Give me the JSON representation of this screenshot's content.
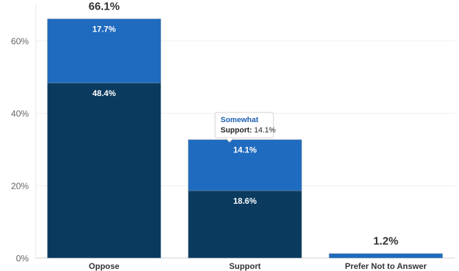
{
  "chart_data": {
    "type": "bar",
    "stacked": true,
    "categories": [
      "Oppose",
      "Support",
      "Prefer Not to Answer"
    ],
    "series": [
      {
        "values": [
          48.4,
          18.6,
          0
        ],
        "color": "#0a3a5e"
      },
      {
        "values": [
          17.7,
          14.1,
          1.2
        ],
        "color": "#1f6bbf"
      }
    ],
    "totals": [
      "66.1%",
      "",
      "1.2%"
    ],
    "segment_labels": [
      [
        "48.4%",
        "17.7%"
      ],
      [
        "18.6%",
        "14.1%"
      ],
      [
        "",
        ""
      ]
    ],
    "yticks": [
      "0%",
      "20%",
      "40%",
      "60%"
    ],
    "ylim": [
      0,
      70
    ],
    "grid": true,
    "tooltip": {
      "title": "Somewhat",
      "label": "Support:",
      "value": "14.1%"
    }
  }
}
